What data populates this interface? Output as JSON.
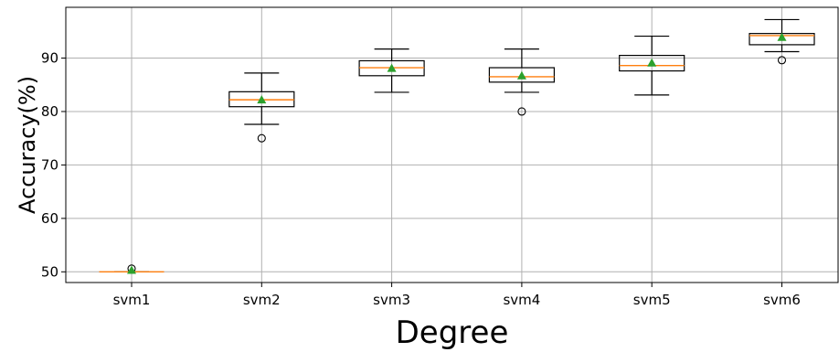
{
  "chart_data": {
    "type": "boxplot",
    "xlabel": "Degree",
    "ylabel": "Accuracy(%)",
    "ylim": [
      48,
      99.5
    ],
    "yticks": [
      50,
      60,
      70,
      80,
      90
    ],
    "grid": true,
    "categories": [
      "svm1",
      "svm2",
      "svm3",
      "svm4",
      "svm5",
      "svm6"
    ],
    "boxes": [
      {
        "label": "svm1",
        "whisker_low": 50.0,
        "q1": 50.0,
        "median": 50.0,
        "q3": 50.0,
        "whisker_high": 50.0,
        "mean": 50.3,
        "outliers": [
          50.6
        ]
      },
      {
        "label": "svm2",
        "whisker_low": 77.6,
        "q1": 80.9,
        "median": 82.2,
        "q3": 83.7,
        "whisker_high": 87.2,
        "mean": 82.2,
        "outliers": [
          75.0
        ]
      },
      {
        "label": "svm3",
        "whisker_low": 83.6,
        "q1": 86.7,
        "median": 88.2,
        "q3": 89.5,
        "whisker_high": 91.7,
        "mean": 88.1,
        "outliers": []
      },
      {
        "label": "svm4",
        "whisker_low": 83.6,
        "q1": 85.5,
        "median": 86.5,
        "q3": 88.2,
        "whisker_high": 91.7,
        "mean": 86.7,
        "outliers": [
          80.0
        ]
      },
      {
        "label": "svm5",
        "whisker_low": 83.1,
        "q1": 87.6,
        "median": 88.6,
        "q3": 90.5,
        "whisker_high": 94.1,
        "mean": 89.1,
        "outliers": []
      },
      {
        "label": "svm6",
        "whisker_low": 91.2,
        "q1": 92.5,
        "median": 94.2,
        "q3": 94.6,
        "whisker_high": 97.2,
        "mean": 93.9,
        "outliers": [
          89.6
        ]
      }
    ],
    "colors": {
      "box": "#000000",
      "median": "#ff7f0e",
      "mean_marker": "#2ca02c",
      "grid": "#b0b0b0",
      "outlier": "#000000"
    }
  }
}
